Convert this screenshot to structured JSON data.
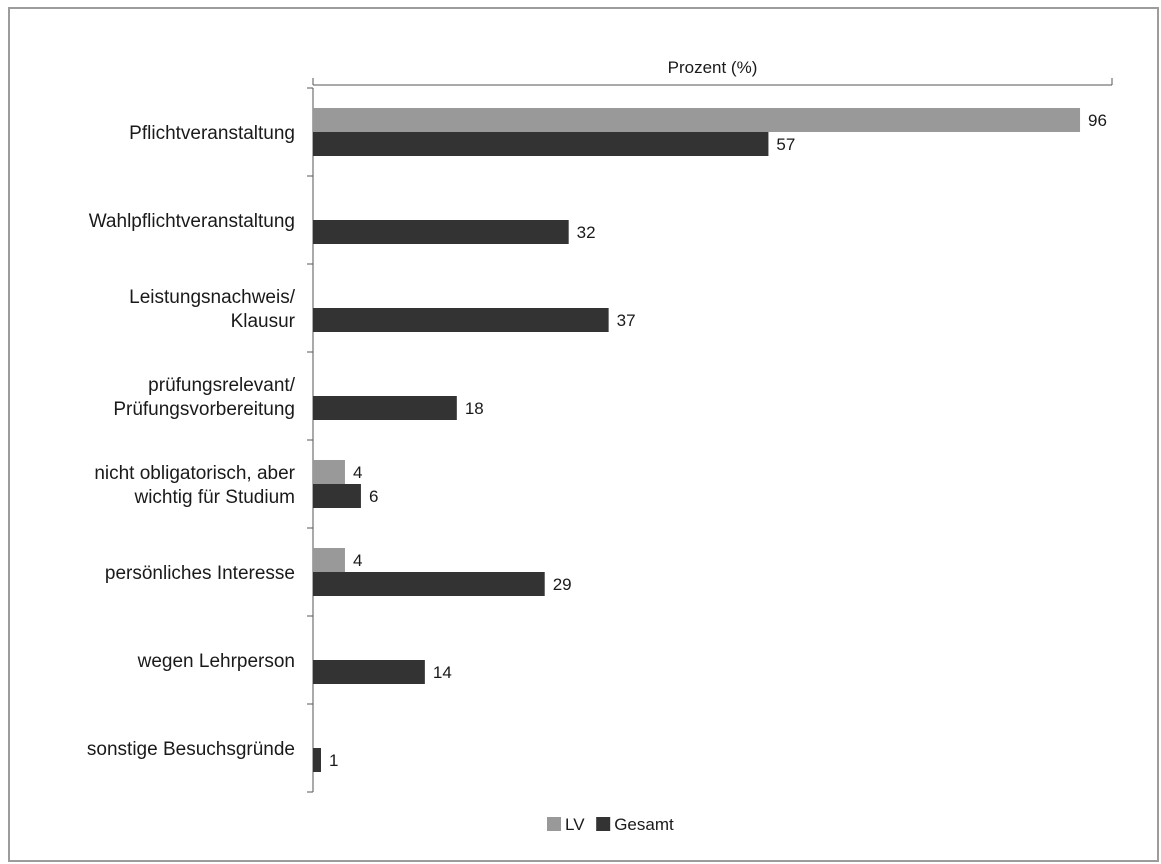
{
  "chart_data": {
    "type": "bar",
    "orientation": "horizontal",
    "axis_title": "Prozent (%)",
    "xlim": [
      0,
      100
    ],
    "grid": false,
    "legend_position": "bottom",
    "categories": [
      [
        "Pflichtveranstaltung"
      ],
      [
        "Wahlpflichtveranstaltung"
      ],
      [
        "Leistungsnachweis/",
        "Klausur"
      ],
      [
        "prüfungsrelevant/",
        "Prüfungsvorbereitung"
      ],
      [
        "nicht obligatorisch, aber",
        "wichtig für Studium"
      ],
      [
        "persönliches Interesse"
      ],
      [
        "wegen Lehrperson"
      ],
      [
        "sonstige Besuchsgründe"
      ]
    ],
    "series": [
      {
        "name": "LV",
        "color": "#999999",
        "values": [
          96,
          null,
          null,
          null,
          4,
          4,
          null,
          null
        ]
      },
      {
        "name": "Gesamt",
        "color": "#333333",
        "values": [
          57,
          32,
          37,
          18,
          6,
          29,
          14,
          1
        ]
      }
    ]
  }
}
